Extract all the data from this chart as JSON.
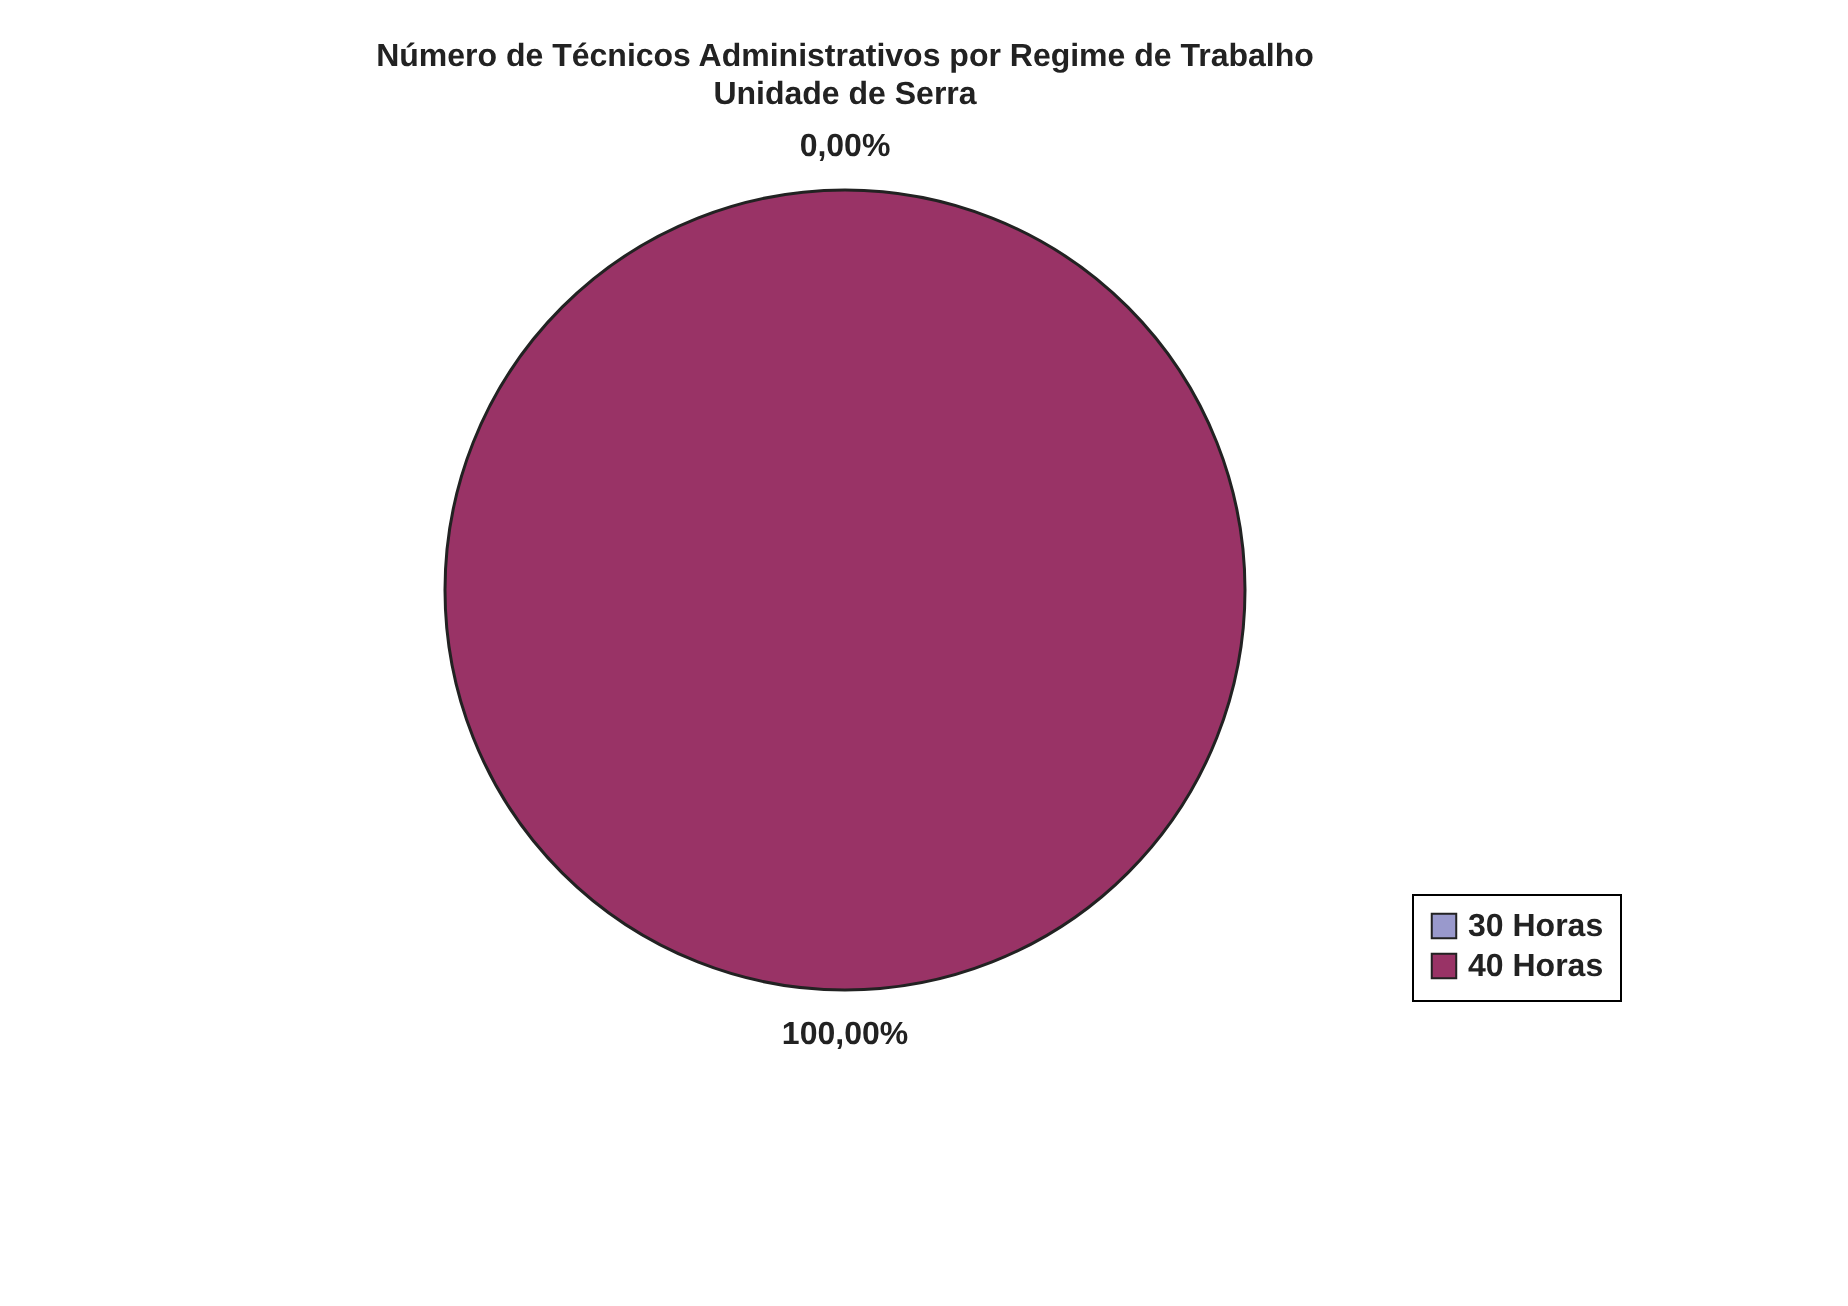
{
  "chart_data": {
    "type": "pie",
    "title": "Número de Técnicos Administrativos por Regime de Trabalho",
    "subtitle": "Unidade de Serra",
    "categories": [
      "30 Horas",
      "40 Horas"
    ],
    "values": [
      0,
      100
    ],
    "colors": [
      "#9999cc",
      "#993366"
    ],
    "value_labels": [
      "0,00%",
      "100,00%"
    ],
    "legend": "bottom right"
  }
}
